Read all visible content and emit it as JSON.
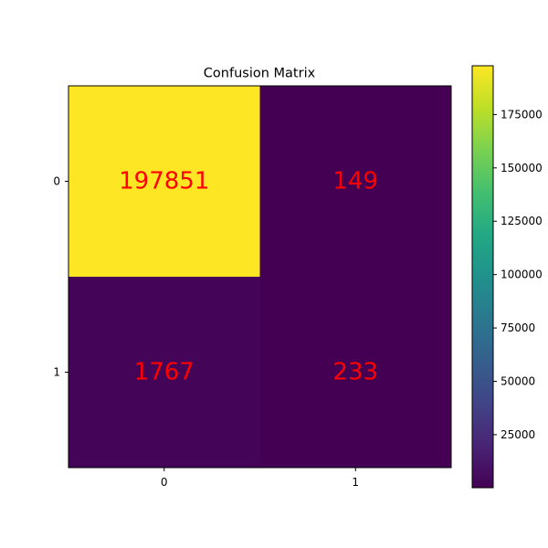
{
  "chart_data": {
    "type": "heatmap",
    "title": "Confusion Matrix",
    "xlabel": "",
    "ylabel": "",
    "x_tick_labels": [
      "0",
      "1"
    ],
    "y_tick_labels": [
      "0",
      "1"
    ],
    "matrix": [
      [
        197851,
        149
      ],
      [
        1767,
        233
      ]
    ],
    "annotation_color": "#ff0000",
    "colormap": "viridis",
    "colorbar": {
      "range": [
        149,
        197851
      ],
      "ticks": [
        25000,
        50000,
        75000,
        100000,
        125000,
        150000,
        175000
      ],
      "tick_labels": [
        "25000",
        "50000",
        "75000",
        "100000",
        "125000",
        "150000",
        "175000"
      ]
    },
    "grid": false
  }
}
